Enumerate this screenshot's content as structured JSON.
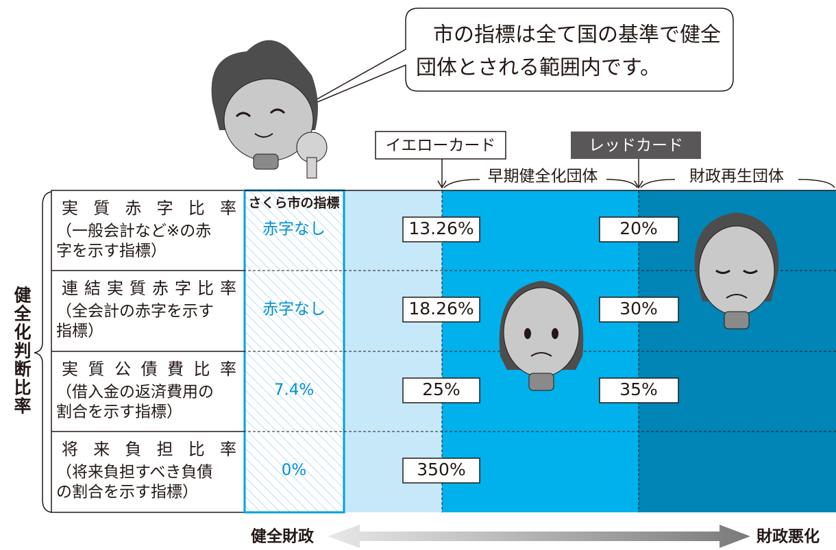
{
  "speech": [
    "市の指標は全て国の基準で健全",
    "団体とされる範囲内です。"
  ],
  "cards": {
    "yellow": "イエローカード",
    "red": "レッドカード"
  },
  "zones": {
    "early": "早期健全化団体",
    "rebuild": "財政再生団体"
  },
  "side_label": "健全化判断比率",
  "city_header": "さくら市の指標",
  "rows": [
    {
      "name": "実質赤字比率",
      "desc": [
        "（一般会計など※の赤",
        "字を示す指標）"
      ],
      "city": "赤字なし",
      "yellow": "13.26%",
      "red": "20%"
    },
    {
      "name": "連結実質赤字比率",
      "desc": [
        "（全会計の赤字を示す",
        "指標）"
      ],
      "city": "赤字なし",
      "yellow": "18.26%",
      "red": "30%"
    },
    {
      "name": "実質公債費比率",
      "desc": [
        "（借入金の返済費用の",
        "割合を示す指標）"
      ],
      "city": "7.4%",
      "yellow": "25%",
      "red": "35%"
    },
    {
      "name": "将来負担比率",
      "desc": [
        "（将来負担すべき負債",
        "の割合を示す指標）"
      ],
      "city": "0%",
      "yellow": "350%"
    }
  ],
  "axis": {
    "left": "健全財政",
    "right": "財政悪化"
  }
}
